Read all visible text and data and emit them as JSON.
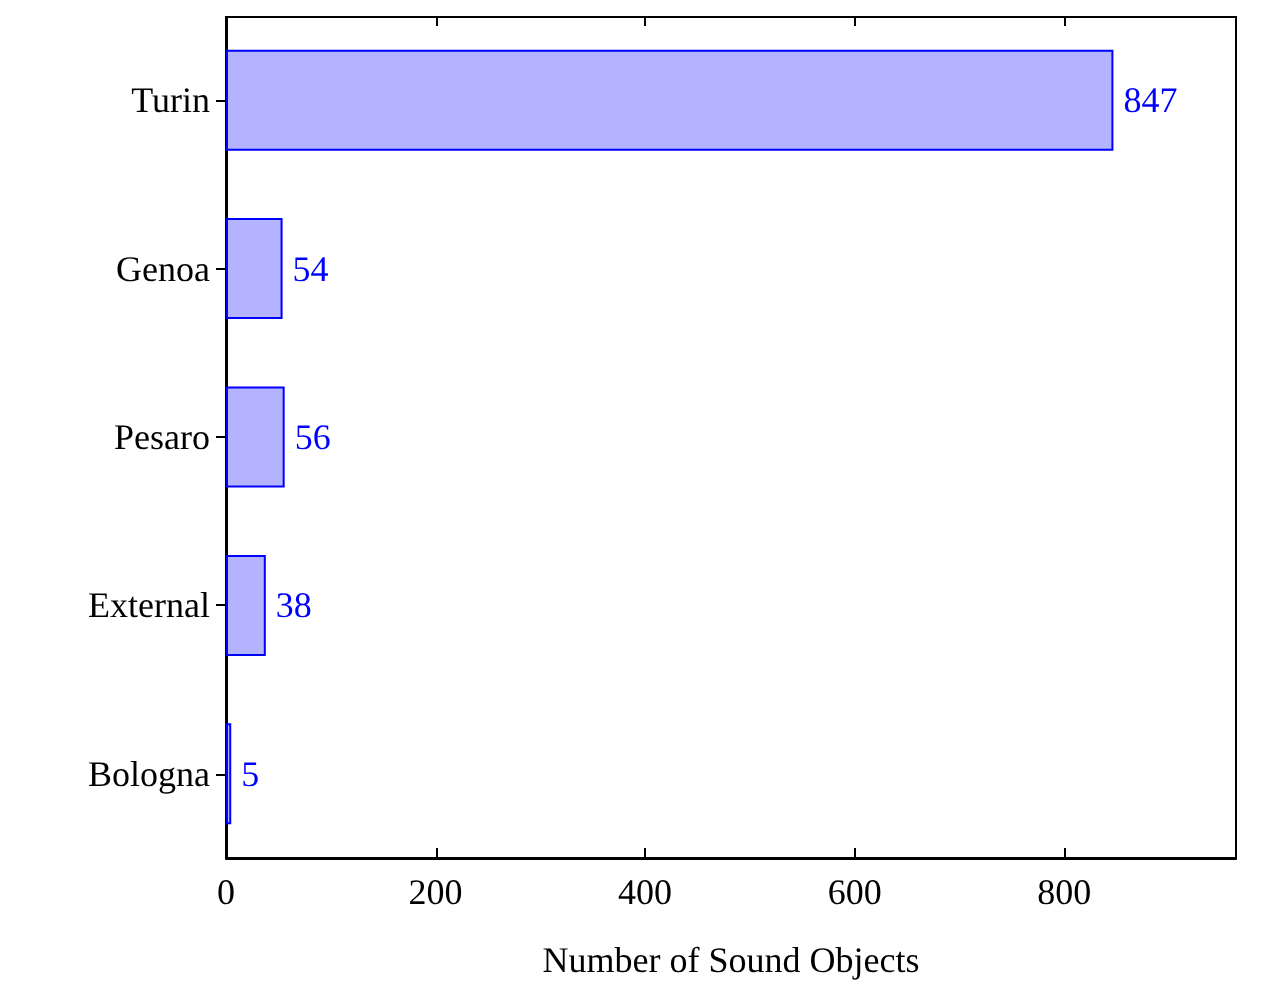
{
  "chart_data": {
    "type": "bar",
    "orientation": "horizontal",
    "xlabel": "Number of Sound Objects",
    "categories": [
      "Turin",
      "Genoa",
      "Pesaro",
      "External",
      "Bologna"
    ],
    "values": [
      847,
      54,
      56,
      38,
      5
    ],
    "color": "#b3b3ff",
    "data_labels": true,
    "xlim": [
      0,
      964
    ],
    "xticks": [
      0,
      200,
      400,
      600,
      800
    ]
  }
}
